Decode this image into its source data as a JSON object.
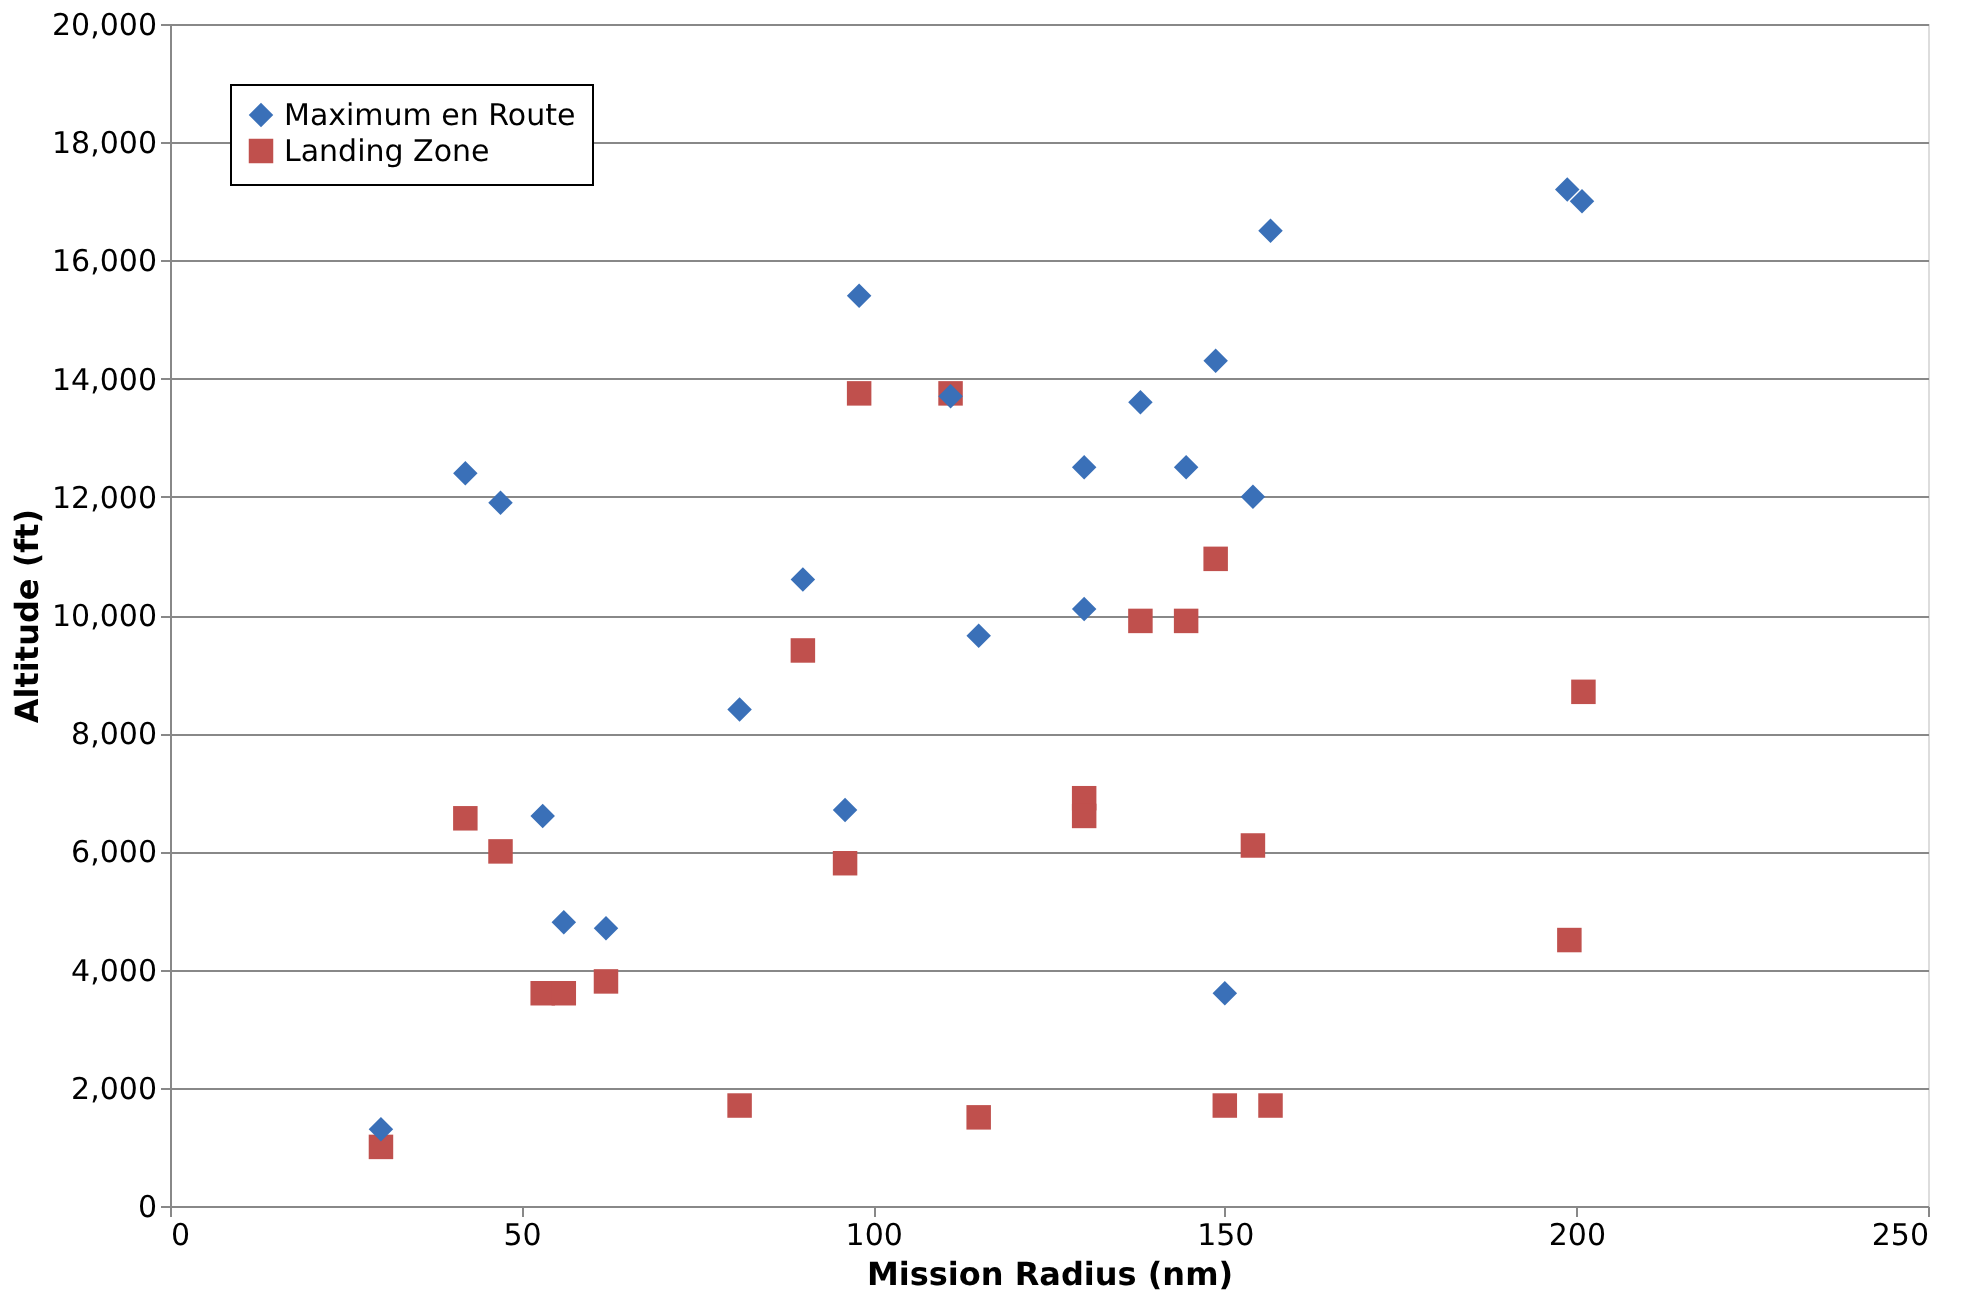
{
  "chart_data": {
    "type": "scatter",
    "xlabel": "Mission Radius (nm)",
    "ylabel": "Altitude (ft)",
    "xlim": [
      0,
      250
    ],
    "xticks": [
      0,
      50,
      100,
      150,
      200,
      250
    ],
    "ylim": [
      0,
      20000
    ],
    "yticks": [
      0,
      {
        "value": 2000,
        "label": "2,000"
      },
      {
        "value": 4000,
        "label": "4,000"
      },
      {
        "value": 6000,
        "label": "6,000"
      },
      {
        "value": 8000,
        "label": "8,000"
      },
      {
        "value": 10000,
        "label": "10,000"
      },
      {
        "value": 12000,
        "label": "12,000"
      },
      {
        "value": 14000,
        "label": "14,000"
      },
      {
        "value": 16000,
        "label": "16,000"
      },
      {
        "value": 18000,
        "label": "18,000"
      },
      {
        "value": 20000,
        "label": "20,000"
      }
    ],
    "grid": "y",
    "legend": "top left",
    "series": [
      {
        "name": "Maximum en Route",
        "color": "#3a70b8",
        "marker": "diamond",
        "x": [
          30,
          42,
          47,
          53,
          56,
          62,
          81,
          90,
          96,
          98,
          111,
          115,
          130,
          130,
          138,
          144.5,
          148.7,
          150,
          154,
          156.5,
          198.7,
          200.8
        ],
        "values": [
          1300,
          12400,
          11900,
          6600,
          4800,
          4700,
          8400,
          10600,
          6700,
          15400,
          13700,
          9650,
          12500,
          10100,
          13600,
          12500,
          14300,
          3600,
          12000,
          16500,
          17200,
          17000
        ]
      },
      {
        "name": "Landing Zone",
        "color": "#c0504d",
        "marker": "square",
        "x": [
          30,
          42,
          47,
          53,
          56,
          62,
          81,
          90,
          96,
          98,
          111,
          115,
          130,
          130,
          138,
          144.5,
          148.7,
          150,
          154,
          156.5,
          199,
          201
        ],
        "values": [
          1000,
          6560,
          6000,
          3600,
          3600,
          3800,
          1700,
          9400,
          5800,
          13750,
          13750,
          1500,
          6900,
          6600,
          9900,
          9900,
          10950,
          1700,
          6100,
          1700,
          4500,
          8700
        ]
      }
    ]
  }
}
